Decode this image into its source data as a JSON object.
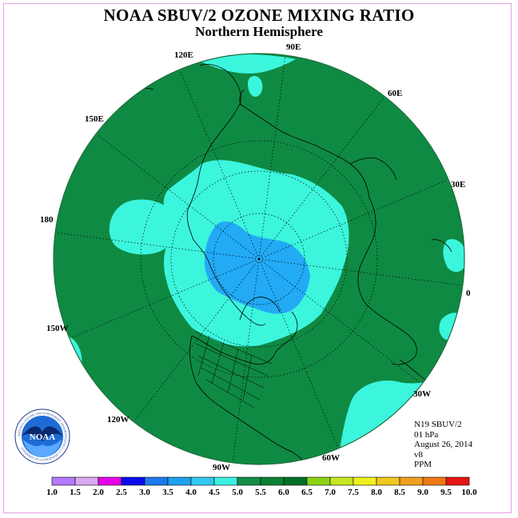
{
  "title": "NOAA SBUV/2 OZONE MIXING RATIO",
  "subtitle": "Northern Hemisphere",
  "longitude_labels": [
    "90E",
    "60E",
    "30E",
    "0",
    "30W",
    "60W",
    "90W",
    "120W",
    "150W",
    "180",
    "150E",
    "120E"
  ],
  "info": {
    "satellite": "N19 SBUV/2",
    "pressure": "01 hPa",
    "date": "August 26, 2014",
    "version": "v8",
    "units": "PPM"
  },
  "logo": {
    "text": "NOAA",
    "ring_text": "NATIONAL OCEANIC AND ATMOSPHERIC ADMINISTRATION • U.S. DEPARTMENT OF COMMERCE"
  },
  "colorbar": {
    "labels": [
      "1.0",
      "1.5",
      "2.0",
      "2.5",
      "3.0",
      "3.5",
      "4.0",
      "4.5",
      "5.0",
      "5.5",
      "6.0",
      "6.5",
      "7.0",
      "7.5",
      "8.0",
      "8.5",
      "9.0",
      "9.5",
      "10.0"
    ],
    "colors": [
      "#b57aff",
      "#d8a8f0",
      "#e600e6",
      "#0a0aee",
      "#1e78f0",
      "#1ea0f0",
      "#32c8f0",
      "#3cf0e0",
      "#148c46",
      "#0a8232",
      "#006e28",
      "#8cd214",
      "#c8e61e",
      "#f0f01e",
      "#f0c81e",
      "#f0a01e",
      "#f07814",
      "#e61414",
      "#8c5a3c"
    ]
  },
  "chart_data": {
    "type": "heatmap",
    "title": "NOAA SBUV/2 OZONE MIXING RATIO",
    "subtitle": "Northern Hemisphere",
    "units": "PPM",
    "projection": "north-polar-stereographic",
    "levels": [
      1.0,
      1.5,
      2.0,
      2.5,
      3.0,
      3.5,
      4.0,
      4.5,
      5.0,
      5.5,
      6.0,
      6.5,
      7.0,
      7.5,
      8.0,
      8.5,
      9.0,
      9.5,
      10.0
    ],
    "dominant_field_range": [
      5.0,
      5.5
    ],
    "polar_region_range": [
      4.5,
      5.0
    ],
    "pole_core_range": [
      4.0,
      4.5
    ]
  }
}
